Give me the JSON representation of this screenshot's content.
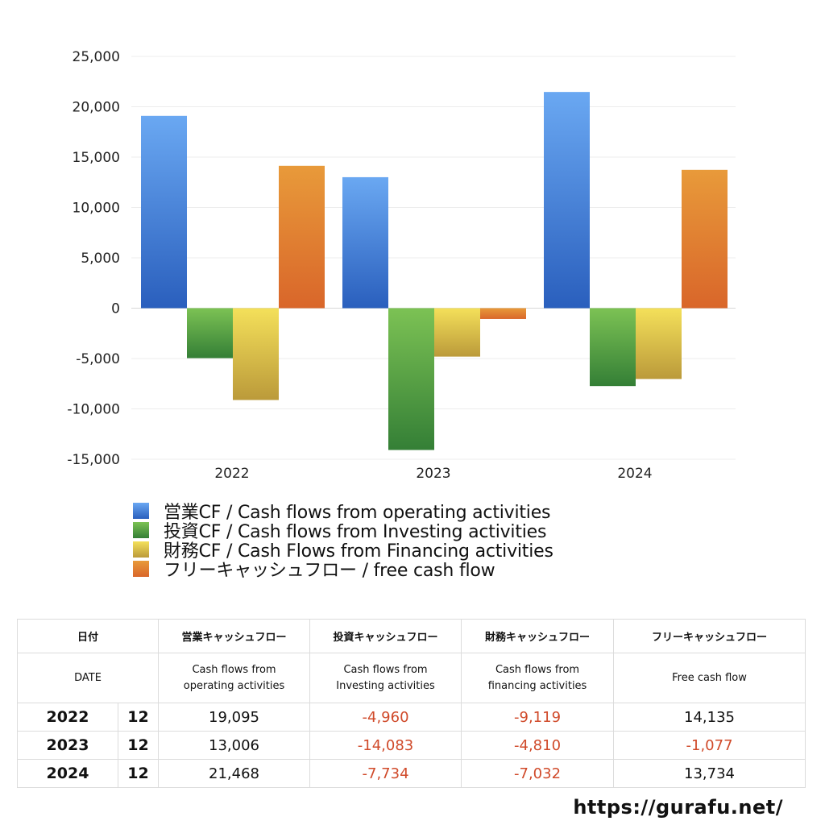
{
  "chart_data": {
    "type": "bar",
    "categories": [
      "2022",
      "2023",
      "2024"
    ],
    "series": [
      {
        "name": "営業CF / Cash flows from operating activities",
        "values": [
          19095,
          13006,
          21468
        ]
      },
      {
        "name": "投資CF / Cash flows from Investing activities",
        "values": [
          -4960,
          -14083,
          -7734
        ]
      },
      {
        "name": "財務CF / Cash Flows from Financing activities",
        "values": [
          -9119,
          -4810,
          -7032
        ]
      },
      {
        "name": "フリーキャッシュフロー / free cash flow",
        "values": [
          14135,
          -1077,
          13734
        ]
      }
    ],
    "ylim": [
      -15000,
      25000
    ],
    "yticks": [
      25000,
      20000,
      15000,
      10000,
      5000,
      0,
      -5000,
      -10000,
      -15000
    ],
    "ytick_labels": [
      "25,000",
      "20,000",
      "15,000",
      "10,000",
      "5,000",
      "0",
      "-5,000",
      "-10,000",
      "-15,000"
    ],
    "grid": true,
    "legend_position": "bottom-left",
    "colors": [
      {
        "top": "#6aa8f2",
        "bottom": "#2a5fbd"
      },
      {
        "top": "#7cc254",
        "bottom": "#347f36"
      },
      {
        "top": "#f4e05a",
        "bottom": "#bb9a3a"
      },
      {
        "top": "#e89a3a",
        "bottom": "#d9662a"
      }
    ]
  },
  "table": {
    "header_jp": {
      "date": "日付",
      "operating": "営業キャッシュフロー",
      "investing": "投資キャッシュフロー",
      "financing": "財務キャッシュフロー",
      "free": "フリーキャッシュフロー"
    },
    "header_en": {
      "date": "DATE",
      "operating": [
        "Cash flows from",
        "operating activities"
      ],
      "investing": [
        "Cash flows from",
        "Investing activities"
      ],
      "financing": [
        "Cash flows from",
        "financing activities"
      ],
      "free": "Free cash flow"
    },
    "rows": [
      {
        "year": "2022",
        "month": "12",
        "operating": "19,095",
        "investing": "-4,960",
        "financing": "-9,119",
        "free": "14,135"
      },
      {
        "year": "2023",
        "month": "12",
        "operating": "13,006",
        "investing": "-14,083",
        "financing": "-4,810",
        "free": "-1,077"
      },
      {
        "year": "2024",
        "month": "12",
        "operating": "21,468",
        "investing": "-7,734",
        "financing": "-7,032",
        "free": "13,734"
      }
    ],
    "negative_color": "#d04a2a"
  },
  "footer": {
    "url": "https://gurafu.net/"
  }
}
